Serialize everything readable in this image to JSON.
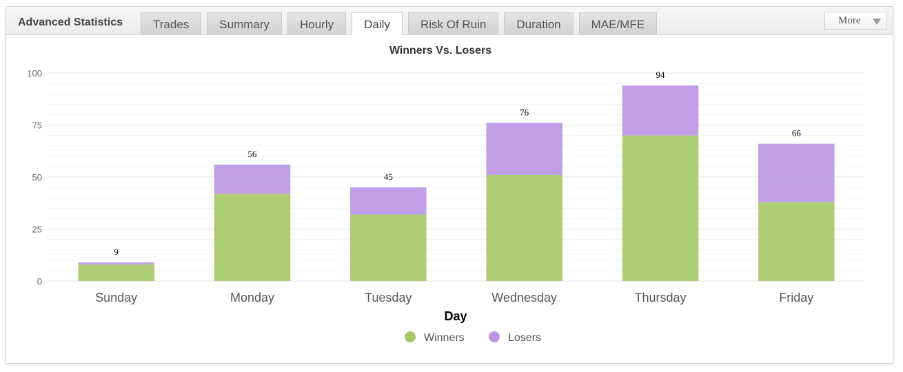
{
  "header": {
    "title": "Advanced Statistics",
    "tabs": [
      {
        "label": "Trades",
        "active": false
      },
      {
        "label": "Summary",
        "active": false
      },
      {
        "label": "Hourly",
        "active": false
      },
      {
        "label": "Daily",
        "active": true
      },
      {
        "label": "Risk Of Ruin",
        "active": false
      },
      {
        "label": "Duration",
        "active": false
      },
      {
        "label": "MAE/MFE",
        "active": false
      }
    ],
    "more_label": "More",
    "more_icon": "chevron-down-icon"
  },
  "chart_data": {
    "type": "bar",
    "stacked": true,
    "title": "Winners Vs. Losers",
    "xlabel": "Day",
    "ylabel": "",
    "categories": [
      "Sunday",
      "Monday",
      "Tuesday",
      "Wednesday",
      "Thursday",
      "Friday"
    ],
    "series": [
      {
        "name": "Winners",
        "color": "#a5c866",
        "values": [
          8,
          42,
          32,
          51,
          70,
          38
        ]
      },
      {
        "name": "Losers",
        "color": "#b995e3",
        "values": [
          1,
          14,
          13,
          25,
          24,
          28
        ]
      }
    ],
    "totals": [
      9,
      56,
      45,
      76,
      94,
      66
    ],
    "ylim": [
      0,
      100
    ],
    "yticks": [
      0,
      25,
      50,
      75,
      100
    ],
    "grid": true,
    "legend": "bottom-center"
  }
}
